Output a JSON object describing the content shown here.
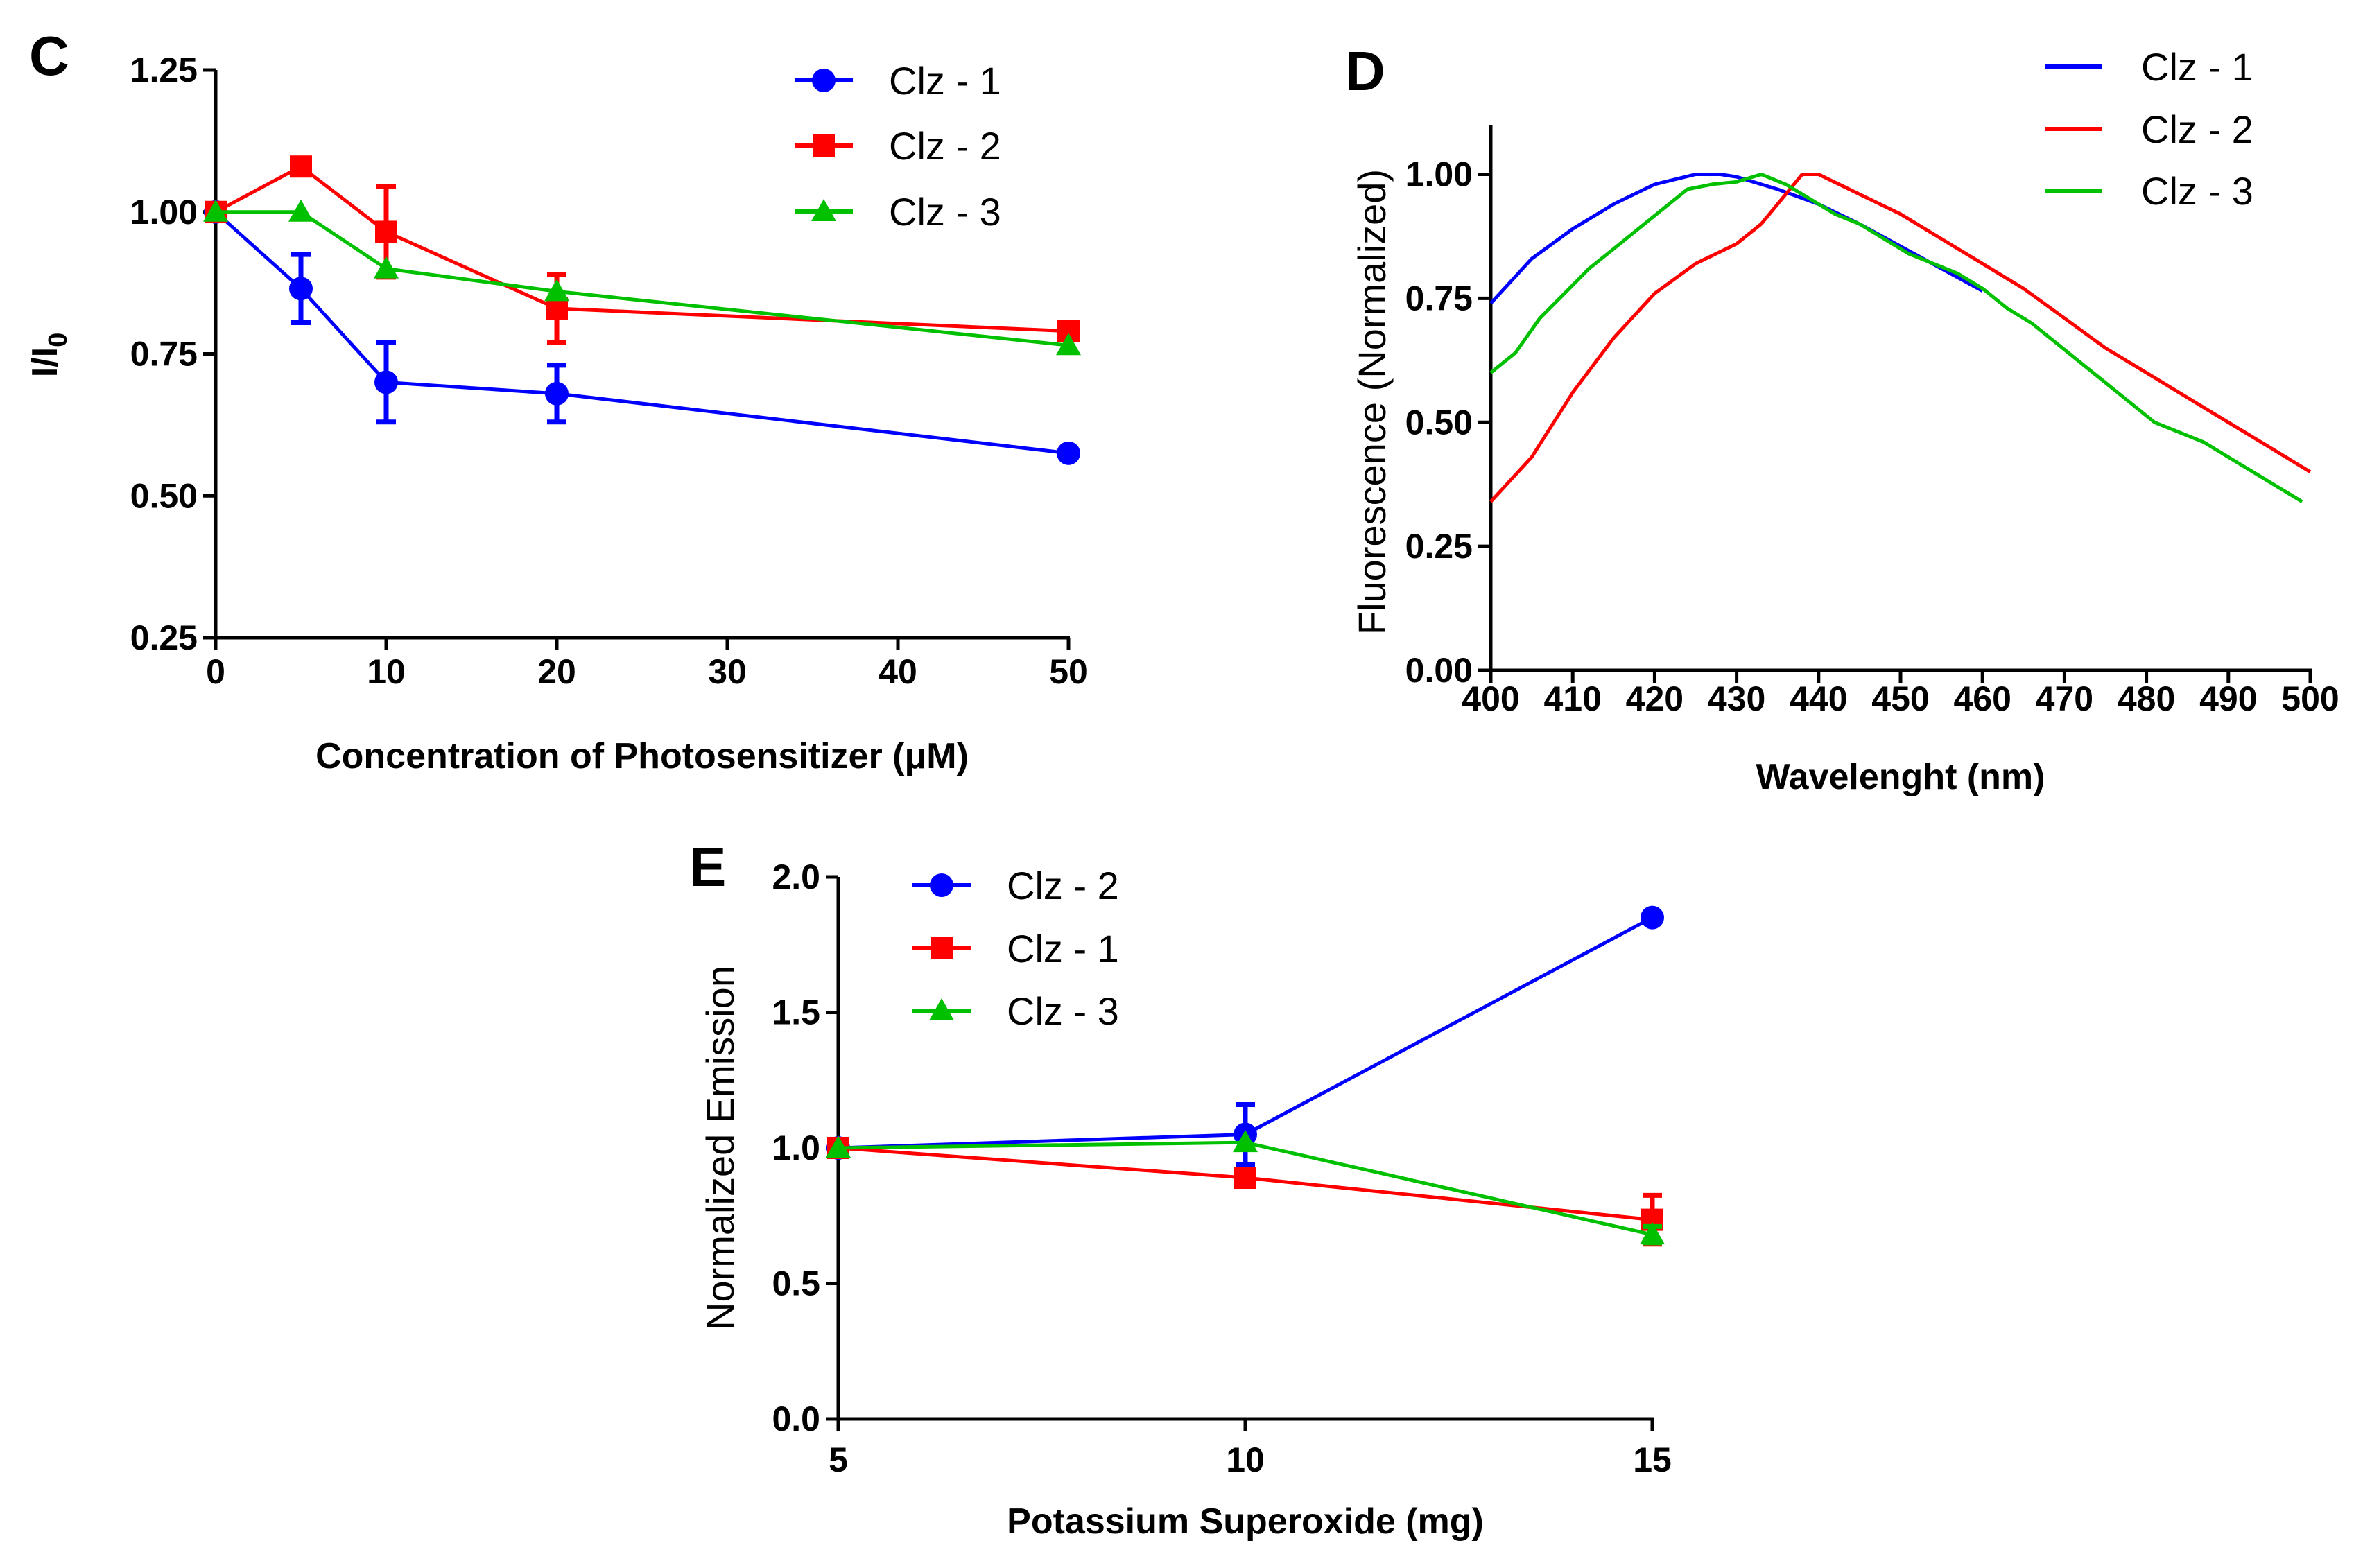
{
  "chart_data": [
    {
      "panel": "C",
      "type": "line",
      "title": "",
      "xlabel": "Concentration of Photosensitizer (μM)",
      "ylabel": "I/I0",
      "ylabel_main": "I/I",
      "ylabel_sub": "0",
      "xlim": [
        0,
        50
      ],
      "ylim": [
        0.25,
        1.25
      ],
      "xticks": [
        0,
        10,
        20,
        30,
        40,
        50
      ],
      "yticks": [
        0.25,
        0.5,
        0.75,
        1.0,
        1.25
      ],
      "xtick_labels": [
        "0",
        "10",
        "20",
        "30",
        "40",
        "50"
      ],
      "ytick_labels": [
        "0.25",
        "0.50",
        "0.75",
        "1.00",
        "1.25"
      ],
      "legend_position": "top-right",
      "series": [
        {
          "name": "Clz - 1",
          "color": "#0000ff",
          "marker": "circle",
          "x": [
            0,
            5,
            10,
            20,
            50
          ],
          "y": [
            1.0,
            0.865,
            0.7,
            0.68,
            0.575
          ],
          "err": [
            0,
            0.06,
            0.07,
            0.05,
            0
          ]
        },
        {
          "name": "Clz - 2",
          "color": "#ff0000",
          "marker": "square",
          "x": [
            0,
            5,
            10,
            20,
            50
          ],
          "y": [
            1.0,
            1.08,
            0.965,
            0.83,
            0.79
          ],
          "err": [
            0,
            0,
            0.08,
            0.06,
            0
          ]
        },
        {
          "name": "Clz - 3",
          "color": "#00c000",
          "marker": "triangle",
          "x": [
            0,
            5,
            10,
            20,
            50
          ],
          "y": [
            1.0,
            1.0,
            0.9,
            0.86,
            0.765
          ],
          "err": [
            0,
            0,
            0,
            0,
            0
          ]
        }
      ]
    },
    {
      "panel": "D",
      "type": "line",
      "title": "",
      "xlabel": "Wavelenght (nm)",
      "ylabel": "Fluorescence (Normalized)",
      "xlim": [
        400,
        500
      ],
      "ylim": [
        0,
        1.1
      ],
      "xticks": [
        400,
        410,
        420,
        430,
        440,
        450,
        460,
        470,
        480,
        490,
        500
      ],
      "yticks": [
        0,
        0.25,
        0.5,
        0.75,
        1.0
      ],
      "xtick_labels": [
        "400",
        "410",
        "420",
        "430",
        "440",
        "450",
        "460",
        "470",
        "480",
        "490",
        "500"
      ],
      "ytick_labels": [
        "0.00",
        "0.25",
        "0.50",
        "0.75",
        "1.00"
      ],
      "legend_position": "top-right",
      "series": [
        {
          "name": "Clz - 1",
          "color": "#0000ff",
          "x": [
            400,
            405,
            410,
            415,
            420,
            425,
            428,
            430,
            435,
            440,
            445,
            450,
            455,
            460
          ],
          "y": [
            0.74,
            0.83,
            0.89,
            0.94,
            0.98,
            1.0,
            1.0,
            0.995,
            0.97,
            0.94,
            0.9,
            0.855,
            0.81,
            0.765
          ]
        },
        {
          "name": "Clz - 2",
          "color": "#ff0000",
          "x": [
            400,
            405,
            410,
            415,
            420,
            425,
            430,
            433,
            436,
            438,
            440,
            445,
            450,
            455,
            460,
            465,
            470,
            475,
            480,
            485,
            490,
            495,
            500
          ],
          "y": [
            0.34,
            0.43,
            0.56,
            0.67,
            0.76,
            0.82,
            0.86,
            0.9,
            0.96,
            1.0,
            1.0,
            0.96,
            0.92,
            0.87,
            0.82,
            0.77,
            0.71,
            0.65,
            0.6,
            0.55,
            0.5,
            0.45,
            0.4
          ]
        },
        {
          "name": "Clz - 3",
          "color": "#00c000",
          "x": [
            400,
            403,
            406,
            409,
            412,
            415,
            418,
            421,
            424,
            427,
            430,
            433,
            436,
            439,
            442,
            445,
            448,
            451,
            454,
            457,
            460,
            463,
            466,
            469,
            472,
            475,
            478,
            481,
            484,
            487,
            490,
            493,
            496,
            499
          ],
          "y": [
            0.6,
            0.64,
            0.71,
            0.76,
            0.81,
            0.85,
            0.89,
            0.93,
            0.97,
            0.98,
            0.985,
            1.0,
            0.98,
            0.95,
            0.92,
            0.9,
            0.87,
            0.84,
            0.82,
            0.8,
            0.77,
            0.73,
            0.7,
            0.66,
            0.62,
            0.58,
            0.54,
            0.5,
            0.48,
            0.46,
            0.43,
            0.4,
            0.37,
            0.34
          ]
        }
      ]
    },
    {
      "panel": "E",
      "type": "line",
      "title": "",
      "xlabel": "Potassium Superoxide (mg)",
      "ylabel": "Normalized  Emission",
      "xlim": [
        5,
        15
      ],
      "ylim": [
        0,
        2.0
      ],
      "xticks": [
        5,
        10,
        15
      ],
      "yticks": [
        0,
        0.5,
        1.0,
        1.5,
        2.0
      ],
      "xtick_labels": [
        "5",
        "10",
        "15"
      ],
      "ytick_labels": [
        "0.0",
        "0.5",
        "1.0",
        "1.5",
        "2.0"
      ],
      "legend_position": "top-left",
      "series": [
        {
          "name": "Clz - 2",
          "color": "#0000ff",
          "marker": "circle",
          "x": [
            5,
            10,
            15
          ],
          "y": [
            1.0,
            1.05,
            1.85
          ],
          "err": [
            0,
            0.11,
            0
          ]
        },
        {
          "name": "Clz - 1",
          "color": "#ff0000",
          "marker": "square",
          "x": [
            5,
            10,
            15
          ],
          "y": [
            1.0,
            0.89,
            0.735
          ],
          "err": [
            0,
            0,
            0.09
          ]
        },
        {
          "name": "Clz - 3",
          "color": "#00c000",
          "marker": "triangle",
          "x": [
            5,
            10,
            15
          ],
          "y": [
            1.0,
            1.02,
            0.68
          ],
          "err": [
            0,
            0,
            0.03
          ]
        }
      ]
    }
  ]
}
